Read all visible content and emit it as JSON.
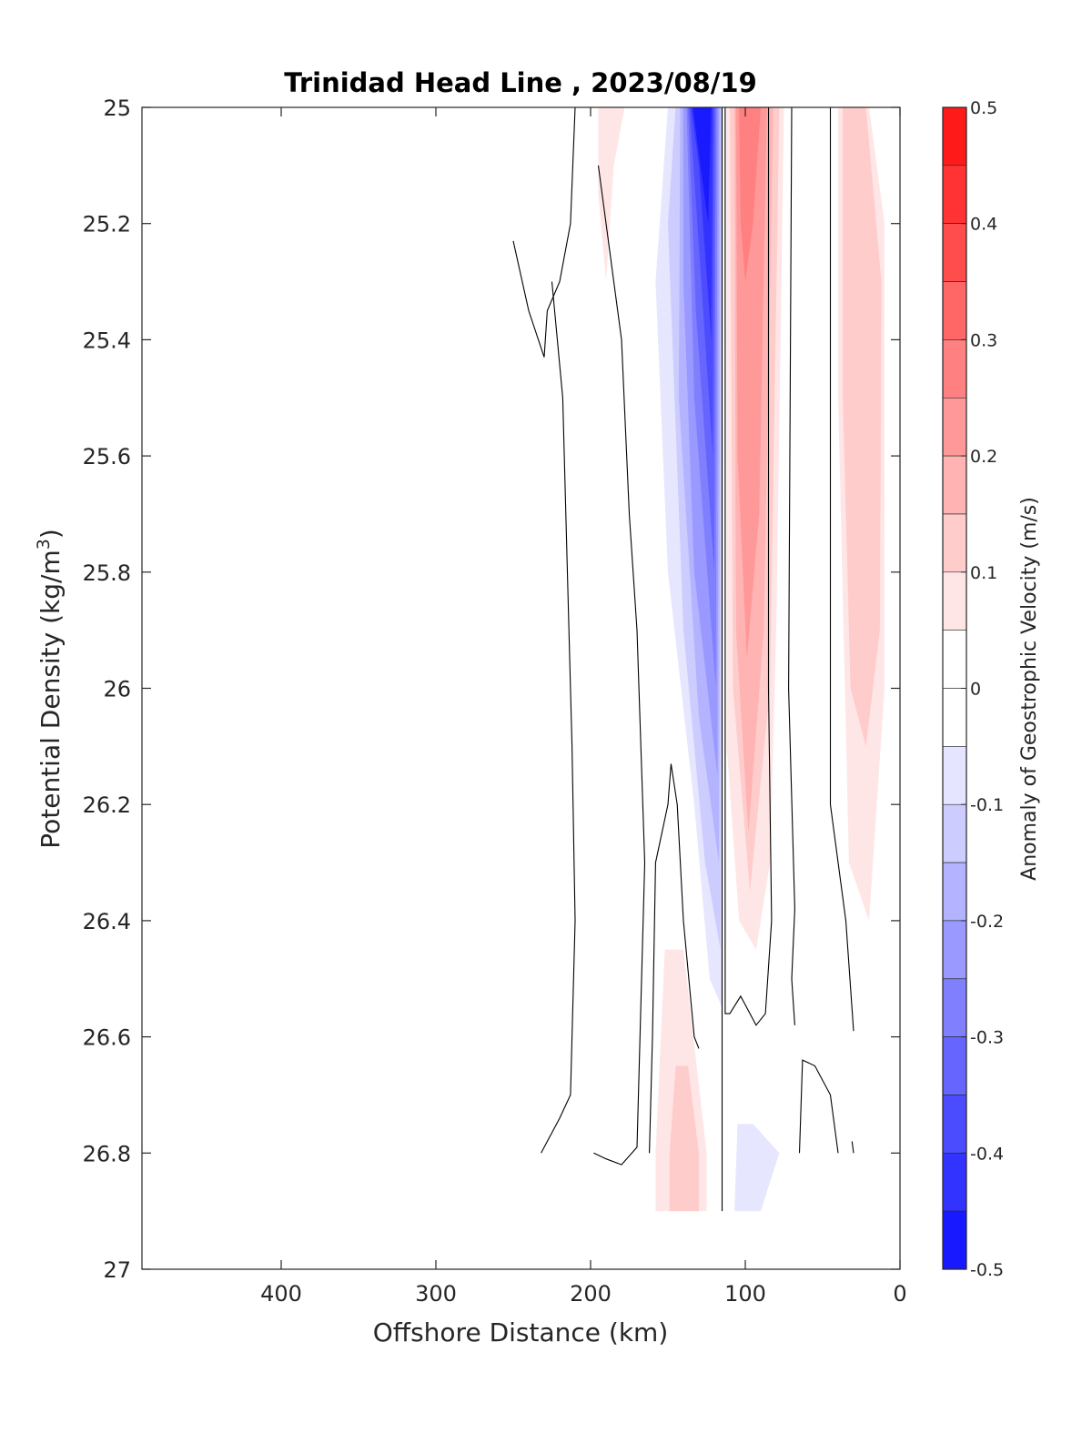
{
  "chart_data": {
    "type": "contour",
    "title": "Trinidad Head Line , 2023/08/19",
    "xlabel": "Offshore Distance (km)",
    "ylabel": "Potential Density (kg/m",
    "ylabel_sup": "3",
    "ylabel_close": ")",
    "colorbar_label": "Anomaly of Geostrophic Velocity (m/s)",
    "xlim": [
      490,
      0
    ],
    "x_reversed": true,
    "ylim": [
      25,
      27
    ],
    "y_reversed": true,
    "grid": false,
    "x_ticks": [
      {
        "value": 400,
        "label": "400"
      },
      {
        "value": 300,
        "label": "300"
      },
      {
        "value": 200,
        "label": "200"
      },
      {
        "value": 100,
        "label": "100"
      },
      {
        "value": 0,
        "label": "0"
      }
    ],
    "y_ticks": [
      {
        "value": 25.0,
        "label": "25"
      },
      {
        "value": 25.2,
        "label": "25.2"
      },
      {
        "value": 25.4,
        "label": "25.4"
      },
      {
        "value": 25.6,
        "label": "25.6"
      },
      {
        "value": 25.8,
        "label": "25.8"
      },
      {
        "value": 26.0,
        "label": "26"
      },
      {
        "value": 26.2,
        "label": "26.2"
      },
      {
        "value": 26.4,
        "label": "26.4"
      },
      {
        "value": 26.6,
        "label": "26.6"
      },
      {
        "value": 26.8,
        "label": "26.8"
      },
      {
        "value": 27.0,
        "label": "27"
      }
    ],
    "colorbar": {
      "range": [
        -0.5,
        0.5
      ],
      "step": 0.05,
      "ticks": [
        {
          "value": 0.5,
          "label": "0.5"
        },
        {
          "value": 0.4,
          "label": "0.4"
        },
        {
          "value": 0.3,
          "label": "0.3"
        },
        {
          "value": 0.2,
          "label": "0.2"
        },
        {
          "value": 0.1,
          "label": "0.1"
        },
        {
          "value": 0.0,
          "label": "0"
        },
        {
          "value": -0.1,
          "label": "-0.1"
        },
        {
          "value": -0.2,
          "label": "-0.2"
        },
        {
          "value": -0.3,
          "label": "-0.3"
        },
        {
          "value": -0.4,
          "label": "-0.4"
        },
        {
          "value": -0.5,
          "label": "-0.5"
        }
      ],
      "positive_color": "#ff0000",
      "negative_color": "#0000ff"
    },
    "filled_regions": [
      {
        "name": "blue-jet-outer",
        "level": -0.05,
        "points": [
          [
            150,
            25.0
          ],
          [
            115,
            25.0
          ],
          [
            115,
            26.55
          ],
          [
            123,
            26.5
          ],
          [
            133,
            26.2
          ],
          [
            150,
            25.8
          ],
          [
            158,
            25.3
          ]
        ]
      },
      {
        "name": "blue-jet-1",
        "level": -0.1,
        "points": [
          [
            145,
            25.0
          ],
          [
            115,
            25.0
          ],
          [
            116,
            26.45
          ],
          [
            126,
            26.3
          ],
          [
            140,
            25.9
          ],
          [
            150,
            25.2
          ]
        ]
      },
      {
        "name": "blue-jet-2",
        "level": -0.15,
        "points": [
          [
            142,
            25.0
          ],
          [
            116,
            25.0
          ],
          [
            117,
            26.3
          ],
          [
            130,
            26.05
          ],
          [
            143,
            25.5
          ]
        ]
      },
      {
        "name": "blue-jet-3",
        "level": -0.2,
        "points": [
          [
            140,
            25.0
          ],
          [
            117,
            25.0
          ],
          [
            118,
            26.15
          ],
          [
            133,
            25.8
          ],
          [
            140,
            25.3
          ]
        ]
      },
      {
        "name": "blue-jet-4",
        "level": -0.25,
        "points": [
          [
            138,
            25.0
          ],
          [
            118,
            25.0
          ],
          [
            119,
            26.0
          ],
          [
            133,
            25.5
          ]
        ]
      },
      {
        "name": "blue-jet-5",
        "level": -0.3,
        "points": [
          [
            137,
            25.0
          ],
          [
            119,
            25.0
          ],
          [
            120,
            25.8
          ],
          [
            132,
            25.35
          ]
        ]
      },
      {
        "name": "blue-jet-6",
        "level": -0.35,
        "points": [
          [
            136,
            25.0
          ],
          [
            120,
            25.0
          ],
          [
            121,
            25.6
          ],
          [
            131,
            25.2
          ]
        ]
      },
      {
        "name": "blue-jet-7",
        "level": -0.4,
        "points": [
          [
            135,
            25.0
          ],
          [
            121,
            25.0
          ],
          [
            122,
            25.4
          ],
          [
            130,
            25.1
          ]
        ]
      },
      {
        "name": "blue-jet-core",
        "level": -0.45,
        "points": [
          [
            134,
            25.0
          ],
          [
            122,
            25.0
          ],
          [
            124,
            25.2
          ]
        ]
      },
      {
        "name": "red-band-outer",
        "level": 0.05,
        "points": [
          [
            112,
            25.0
          ],
          [
            75,
            25.0
          ],
          [
            80,
            25.9
          ],
          [
            84,
            26.3
          ],
          [
            93,
            26.45
          ],
          [
            104,
            26.4
          ],
          [
            112,
            26.1
          ]
        ]
      },
      {
        "name": "red-band-1",
        "level": 0.1,
        "points": [
          [
            110,
            25.0
          ],
          [
            78,
            25.0
          ],
          [
            84,
            26.0
          ],
          [
            97,
            26.35
          ],
          [
            108,
            26.0
          ]
        ]
      },
      {
        "name": "red-band-2",
        "level": 0.15,
        "points": [
          [
            107,
            25.0
          ],
          [
            82,
            25.0
          ],
          [
            88,
            25.9
          ],
          [
            98,
            26.25
          ],
          [
            106,
            25.9
          ]
        ]
      },
      {
        "name": "red-band-3",
        "level": 0.2,
        "points": [
          [
            106,
            25.0
          ],
          [
            86,
            25.0
          ],
          [
            91,
            25.7
          ],
          [
            99,
            25.95
          ],
          [
            105,
            25.6
          ]
        ]
      },
      {
        "name": "red-band-4",
        "level": 0.25,
        "points": [
          [
            104,
            25.0
          ],
          [
            90,
            25.0
          ],
          [
            95,
            25.2
          ],
          [
            100,
            25.3
          ],
          [
            103,
            25.2
          ]
        ]
      },
      {
        "name": "red-coastal-outer",
        "level": 0.05,
        "points": [
          [
            40,
            25.0
          ],
          [
            20,
            25.0
          ],
          [
            10,
            25.2
          ],
          [
            10,
            26.0
          ],
          [
            20,
            26.4
          ],
          [
            33,
            26.3
          ],
          [
            40,
            25.5
          ]
        ]
      },
      {
        "name": "red-coastal-inner",
        "level": 0.1,
        "points": [
          [
            37,
            25.0
          ],
          [
            22,
            25.0
          ],
          [
            12,
            25.3
          ],
          [
            13,
            25.9
          ],
          [
            22,
            26.1
          ],
          [
            32,
            26.0
          ],
          [
            37,
            25.5
          ]
        ]
      },
      {
        "name": "red-offshore-top",
        "level": 0.05,
        "points": [
          [
            195,
            25.0
          ],
          [
            178,
            25.0
          ],
          [
            185,
            25.1
          ],
          [
            190,
            25.3
          ],
          [
            195,
            25.15
          ]
        ]
      },
      {
        "name": "red-deep-outer",
        "level": 0.05,
        "points": [
          [
            152,
            26.45
          ],
          [
            140,
            26.45
          ],
          [
            125,
            26.8
          ],
          [
            125,
            26.9
          ],
          [
            158,
            26.9
          ],
          [
            158,
            26.8
          ]
        ]
      },
      {
        "name": "red-deep-inner",
        "level": 0.1,
        "points": [
          [
            145,
            26.65
          ],
          [
            137,
            26.65
          ],
          [
            130,
            26.8
          ],
          [
            130,
            26.9
          ],
          [
            149,
            26.9
          ],
          [
            149,
            26.8
          ]
        ]
      },
      {
        "name": "blue-deep-patch",
        "level": -0.05,
        "points": [
          [
            105,
            26.75
          ],
          [
            95,
            26.75
          ],
          [
            78,
            26.8
          ],
          [
            90,
            26.9
          ],
          [
            107,
            26.9
          ]
        ]
      }
    ],
    "contour_lines": [
      {
        "name": "zero-line-offshore-a",
        "points": [
          [
            250,
            25.23
          ],
          [
            240,
            25.35
          ],
          [
            230,
            25.43
          ],
          [
            228,
            25.35
          ],
          [
            220,
            25.3
          ],
          [
            213,
            25.2
          ],
          [
            210,
            25.0
          ]
        ]
      },
      {
        "name": "zero-line-offshore-b",
        "points": [
          [
            232,
            26.8
          ],
          [
            220,
            26.74
          ],
          [
            213,
            26.7
          ],
          [
            210,
            26.4
          ],
          [
            212,
            26.1
          ],
          [
            218,
            25.5
          ],
          [
            225,
            25.3
          ]
        ]
      },
      {
        "name": "zero-line-mid",
        "points": [
          [
            198,
            26.8
          ],
          [
            190,
            26.81
          ],
          [
            180,
            26.82
          ],
          [
            170,
            26.79
          ],
          [
            165,
            26.3
          ],
          [
            170,
            25.9
          ],
          [
            175,
            25.7
          ],
          [
            180,
            25.4
          ],
          [
            185,
            25.3
          ],
          [
            190,
            25.2
          ],
          [
            195,
            25.1
          ]
        ]
      },
      {
        "name": "zero-line-jet-west",
        "points": [
          [
            162,
            26.8
          ],
          [
            160,
            26.6
          ],
          [
            158,
            26.3
          ],
          [
            150,
            26.2
          ],
          [
            148,
            26.13
          ],
          [
            144,
            26.2
          ],
          [
            140,
            26.4
          ],
          [
            133,
            26.6
          ],
          [
            130,
            26.62
          ]
        ]
      },
      {
        "name": "zero-line-jet-mid",
        "points": [
          [
            115,
            25.0
          ],
          [
            115,
            26.0
          ],
          [
            115,
            26.6
          ],
          [
            115,
            26.9
          ]
        ]
      },
      {
        "name": "zero-line-jet-east",
        "points": [
          [
            113,
            25.0
          ],
          [
            113,
            26.56
          ],
          [
            110,
            26.56
          ],
          [
            103,
            26.53
          ],
          [
            93,
            26.58
          ],
          [
            87,
            26.56
          ],
          [
            83,
            26.4
          ],
          [
            85,
            26.0
          ],
          [
            85,
            25.0
          ]
        ]
      },
      {
        "name": "zero-line-coast-a",
        "points": [
          [
            65,
            26.8
          ],
          [
            63,
            26.64
          ],
          [
            55,
            26.65
          ],
          [
            45,
            26.7
          ],
          [
            40,
            26.8
          ]
        ]
      },
      {
        "name": "zero-line-coast-b",
        "points": [
          [
            45,
            25.0
          ],
          [
            45,
            26.0
          ],
          [
            45,
            26.2
          ],
          [
            35,
            26.4
          ],
          [
            30,
            26.59
          ]
        ]
      },
      {
        "name": "zero-line-coast-c",
        "points": [
          [
            70,
            25.0
          ],
          [
            72,
            26.0
          ],
          [
            68,
            26.38
          ],
          [
            70,
            26.5
          ],
          [
            68,
            26.58
          ]
        ]
      },
      {
        "name": "zero-line-coast-d",
        "points": [
          [
            30,
            26.8
          ],
          [
            31,
            26.78
          ]
        ]
      }
    ]
  }
}
